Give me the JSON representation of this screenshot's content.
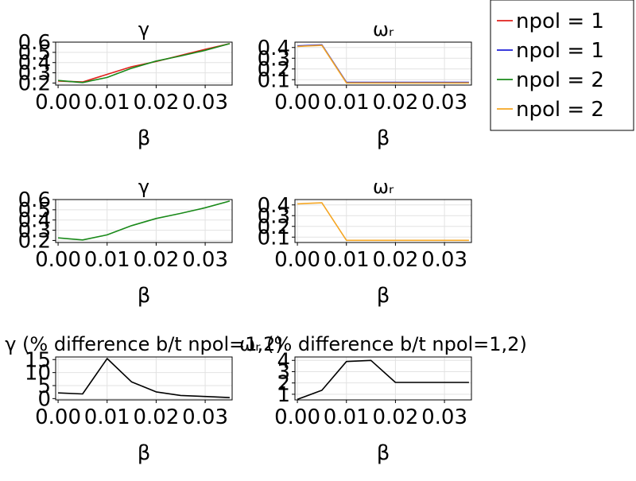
{
  "legend": {
    "placement": "top-right",
    "entries": [
      {
        "label": "npol = 1",
        "color": "#e0201b"
      },
      {
        "label": "npol = 1",
        "color": "#1f20d8"
      },
      {
        "label": "npol = 2",
        "color": "#1a8a1a"
      },
      {
        "label": "npol = 2",
        "color": "#f5a623"
      }
    ]
  },
  "chart_data": [
    {
      "type": "line",
      "title": "γ",
      "xlabel": "β",
      "ylabel": "",
      "grid": true,
      "xlim": [
        -0.0005,
        0.0355
      ],
      "ylim": [
        0.18,
        0.6
      ],
      "xticks": [
        "0.00",
        "0.01",
        "0.02",
        "0.03"
      ],
      "xtick_values": [
        0,
        0.01,
        0.02,
        0.03
      ],
      "yticks": [
        "0.2",
        "0.3",
        "0.4",
        "0.5",
        "0.6"
      ],
      "ytick_values": [
        0.2,
        0.3,
        0.4,
        0.5,
        0.6
      ],
      "x": [
        0,
        0.005,
        0.01,
        0.015,
        0.02,
        0.025,
        0.03,
        0.035
      ],
      "series": [
        {
          "name": "npol = 1",
          "color": "#e0201b",
          "values": [
            0.22,
            0.21,
            0.285,
            0.36,
            0.41,
            0.47,
            0.53,
            0.585
          ]
        },
        {
          "name": "npol = 2",
          "color": "#1a8a1a",
          "values": [
            0.225,
            0.205,
            0.255,
            0.345,
            0.415,
            0.465,
            0.52,
            0.585
          ]
        }
      ]
    },
    {
      "type": "line",
      "title": "ωᵣ",
      "xlabel": "β",
      "ylabel": "",
      "grid": true,
      "xlim": [
        -0.0005,
        0.0355
      ],
      "ylim": [
        0.05,
        0.45
      ],
      "xticks": [
        "0.00",
        "0.01",
        "0.02",
        "0.03"
      ],
      "xtick_values": [
        0,
        0.01,
        0.02,
        0.03
      ],
      "yticks": [
        "0.1",
        "0.2",
        "0.3",
        "0.4"
      ],
      "ytick_values": [
        0.1,
        0.2,
        0.3,
        0.4
      ],
      "x": [
        0,
        0.005,
        0.01,
        0.015,
        0.02,
        0.025,
        0.03,
        0.035
      ],
      "series": [
        {
          "name": "npol = 1",
          "color": "#1f20d8",
          "values": [
            0.415,
            0.425,
            0.075,
            0.075,
            0.075,
            0.075,
            0.075,
            0.075
          ]
        },
        {
          "name": "npol = 2",
          "color": "#f5a623",
          "values": [
            0.41,
            0.42,
            0.07,
            0.07,
            0.07,
            0.07,
            0.07,
            0.07
          ]
        }
      ]
    },
    {
      "type": "line",
      "title": "γ",
      "xlabel": "β",
      "ylabel": "",
      "grid": true,
      "xlim": [
        -0.0005,
        0.0355
      ],
      "ylim": [
        0.18,
        0.6
      ],
      "xticks": [
        "0.00",
        "0.01",
        "0.02",
        "0.03"
      ],
      "xtick_values": [
        0,
        0.01,
        0.02,
        0.03
      ],
      "yticks": [
        "0.2",
        "0.3",
        "0.4",
        "0.5",
        "0.6"
      ],
      "ytick_values": [
        0.2,
        0.3,
        0.4,
        0.5,
        0.6
      ],
      "x": [
        0,
        0.005,
        0.01,
        0.015,
        0.02,
        0.025,
        0.03,
        0.035
      ],
      "series": [
        {
          "name": "npol = 2",
          "color": "#1a8a1a",
          "values": [
            0.225,
            0.205,
            0.255,
            0.345,
            0.415,
            0.465,
            0.52,
            0.585
          ]
        }
      ]
    },
    {
      "type": "line",
      "title": "ωᵣ",
      "xlabel": "β",
      "ylabel": "",
      "grid": true,
      "xlim": [
        -0.0005,
        0.0355
      ],
      "ylim": [
        0.05,
        0.45
      ],
      "xticks": [
        "0.00",
        "0.01",
        "0.02",
        "0.03"
      ],
      "xtick_values": [
        0,
        0.01,
        0.02,
        0.03
      ],
      "yticks": [
        "0.1",
        "0.2",
        "0.3",
        "0.4"
      ],
      "ytick_values": [
        0.1,
        0.2,
        0.3,
        0.4
      ],
      "x": [
        0,
        0.005,
        0.01,
        0.015,
        0.02,
        0.025,
        0.03,
        0.035
      ],
      "series": [
        {
          "name": "npol = 2",
          "color": "#f5a623",
          "values": [
            0.41,
            0.42,
            0.07,
            0.07,
            0.07,
            0.07,
            0.07,
            0.07
          ]
        }
      ]
    },
    {
      "type": "line",
      "title": "γ (% difference b/t npol=1,2)",
      "xlabel": "β",
      "ylabel": "",
      "grid": true,
      "xlim": [
        -0.0005,
        0.0355
      ],
      "ylim": [
        -0.5,
        16
      ],
      "xticks": [
        "0.00",
        "0.01",
        "0.02",
        "0.03"
      ],
      "xtick_values": [
        0,
        0.01,
        0.02,
        0.03
      ],
      "yticks": [
        "0",
        "5",
        "10",
        "15"
      ],
      "ytick_values": [
        0,
        5,
        10,
        15
      ],
      "x": [
        0,
        0.005,
        0.01,
        0.015,
        0.02,
        0.025,
        0.03,
        0.035
      ],
      "series": [
        {
          "color": "#000000",
          "values": [
            2.2,
            1.8,
            15.4,
            6.4,
            2.6,
            1.2,
            0.8,
            0.4
          ]
        }
      ]
    },
    {
      "type": "line",
      "title": "ωᵣ (% difference b/t npol=1,2)",
      "xlabel": "β",
      "ylabel": "",
      "grid": true,
      "xlim": [
        -0.0005,
        0.0355
      ],
      "ylim": [
        0.5,
        4.3
      ],
      "xticks": [
        "0.00",
        "0.01",
        "0.02",
        "0.03"
      ],
      "xtick_values": [
        0,
        0.01,
        0.02,
        0.03
      ],
      "yticks": [
        "1",
        "2",
        "3",
        "4"
      ],
      "ytick_values": [
        1,
        2,
        3,
        4
      ],
      "x": [
        0,
        0.005,
        0.01,
        0.015,
        0.02,
        0.025,
        0.03,
        0.035
      ],
      "series": [
        {
          "color": "#000000",
          "values": [
            0.55,
            1.35,
            3.9,
            4.0,
            2.05,
            2.05,
            2.05,
            2.05
          ]
        }
      ]
    }
  ]
}
